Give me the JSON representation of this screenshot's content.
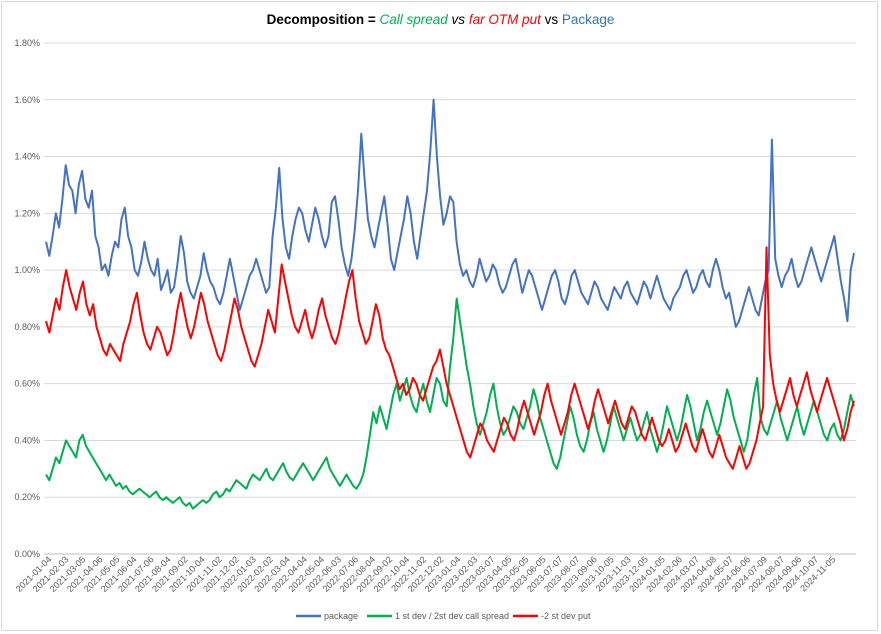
{
  "title": {
    "part1": "Decomposition = ",
    "part2": "Call spread",
    "part3": " vs ",
    "part4": "far OTM put",
    "part5": " vs ",
    "part6": "Package"
  },
  "chart_data": {
    "type": "line",
    "title": "Decomposition = Call spread vs far OTM put vs Package",
    "ylim": [
      0,
      0.018
    ],
    "y_ticks": [
      "0.00%",
      "0.20%",
      "0.40%",
      "0.60%",
      "0.80%",
      "1.00%",
      "1.20%",
      "1.40%",
      "1.60%",
      "1.80%"
    ],
    "y_tick_values": [
      0,
      0.002,
      0.004,
      0.006,
      0.008,
      0.01,
      0.012,
      0.014,
      0.016,
      0.018
    ],
    "grid": "horizontal",
    "legend_position": "bottom",
    "x_tick_labels": [
      "2021-01-04",
      "2021-02-03",
      "2021-03-05",
      "2021-04-06",
      "2021-05-05",
      "2021-06-04",
      "2021-07-06",
      "2021-08-04",
      "2021-09-02",
      "2021-10-04",
      "2021-11-02",
      "2021-12-02",
      "2022-01-03",
      "2022-02-02",
      "2022-03-04",
      "2022-04-04",
      "2022-05-04",
      "2022-06-03",
      "2022-07-06",
      "2022-08-04",
      "2022-09-02",
      "2022-10-04",
      "2022-11-02",
      "2022-12-02",
      "2023-01-04",
      "2023-02-03",
      "2023-03-07",
      "2023-04-05",
      "2023-05-05",
      "2023-06-05",
      "2023-07-07",
      "2023-08-07",
      "2023-09-06",
      "2023-10-05",
      "2023-11-03",
      "2023-12-05",
      "2024-01-05",
      "2024-02-06",
      "2024-03-07",
      "2024-04-08",
      "2024-05-07",
      "2024-06-06",
      "2024-07-09",
      "2024-08-07",
      "2024-09-06",
      "2024-10-07",
      "2024-11-05"
    ],
    "series": [
      {
        "name": "package",
        "color": "#4472c4",
        "values": [
          0.011,
          0.0105,
          0.0112,
          0.012,
          0.0115,
          0.0125,
          0.0137,
          0.013,
          0.0128,
          0.012,
          0.013,
          0.0135,
          0.0125,
          0.0122,
          0.0128,
          0.0112,
          0.0108,
          0.01,
          0.0102,
          0.0098,
          0.0105,
          0.011,
          0.0108,
          0.0118,
          0.0122,
          0.0112,
          0.0108,
          0.01,
          0.0098,
          0.0103,
          0.011,
          0.0104,
          0.01,
          0.0098,
          0.0104,
          0.0093,
          0.0096,
          0.01,
          0.0092,
          0.0094,
          0.0102,
          0.0112,
          0.0106,
          0.0096,
          0.0092,
          0.009,
          0.0094,
          0.0098,
          0.0106,
          0.01,
          0.0096,
          0.0094,
          0.009,
          0.0088,
          0.0092,
          0.0098,
          0.0104,
          0.0098,
          0.0092,
          0.0086,
          0.009,
          0.0094,
          0.0098,
          0.01,
          0.0104,
          0.01,
          0.0096,
          0.0092,
          0.0094,
          0.0112,
          0.0122,
          0.0136,
          0.0118,
          0.0108,
          0.0104,
          0.0112,
          0.0118,
          0.0122,
          0.012,
          0.0114,
          0.011,
          0.0116,
          0.0122,
          0.0118,
          0.0112,
          0.0108,
          0.0112,
          0.0124,
          0.0126,
          0.0118,
          0.0108,
          0.0102,
          0.0098,
          0.0104,
          0.0114,
          0.0128,
          0.0148,
          0.0132,
          0.0118,
          0.0112,
          0.0108,
          0.0114,
          0.012,
          0.0126,
          0.0116,
          0.0104,
          0.01,
          0.0106,
          0.0112,
          0.0118,
          0.0126,
          0.012,
          0.011,
          0.0104,
          0.0112,
          0.012,
          0.0128,
          0.0142,
          0.016,
          0.014,
          0.0126,
          0.0116,
          0.012,
          0.0126,
          0.0124,
          0.011,
          0.0102,
          0.0098,
          0.01,
          0.0096,
          0.0094,
          0.0098,
          0.0104,
          0.01,
          0.0096,
          0.0098,
          0.0102,
          0.01,
          0.0095,
          0.0092,
          0.0094,
          0.0098,
          0.0102,
          0.0104,
          0.0098,
          0.0092,
          0.0096,
          0.01,
          0.0098,
          0.0094,
          0.009,
          0.0086,
          0.009,
          0.0094,
          0.0098,
          0.01,
          0.0096,
          0.009,
          0.0088,
          0.0092,
          0.0098,
          0.01,
          0.0096,
          0.0092,
          0.009,
          0.0088,
          0.0092,
          0.0096,
          0.0094,
          0.009,
          0.0088,
          0.0086,
          0.009,
          0.0094,
          0.0092,
          0.009,
          0.0094,
          0.0096,
          0.0092,
          0.009,
          0.0088,
          0.0092,
          0.0096,
          0.0094,
          0.009,
          0.0094,
          0.0098,
          0.0094,
          0.009,
          0.0088,
          0.0086,
          0.009,
          0.0092,
          0.0094,
          0.0098,
          0.01,
          0.0096,
          0.0092,
          0.0094,
          0.0098,
          0.01,
          0.0096,
          0.0094,
          0.01,
          0.0104,
          0.01,
          0.0094,
          0.009,
          0.0092,
          0.0086,
          0.008,
          0.0082,
          0.0086,
          0.009,
          0.0094,
          0.009,
          0.0086,
          0.0084,
          0.009,
          0.0096,
          0.01,
          0.0146,
          0.0104,
          0.0098,
          0.0094,
          0.0098,
          0.01,
          0.0104,
          0.0098,
          0.0094,
          0.0096,
          0.01,
          0.0104,
          0.0108,
          0.0104,
          0.01,
          0.0096,
          0.01,
          0.0104,
          0.0108,
          0.0112,
          0.0104,
          0.0096,
          0.009,
          0.0082,
          0.01,
          0.0106
        ]
      },
      {
        "name": "1 st dev / 2st dev call spread",
        "color": "#00b050",
        "values": [
          0.0028,
          0.0026,
          0.003,
          0.0034,
          0.0032,
          0.0036,
          0.004,
          0.0038,
          0.0036,
          0.0034,
          0.004,
          0.0042,
          0.0038,
          0.0036,
          0.0034,
          0.0032,
          0.003,
          0.0028,
          0.0026,
          0.0028,
          0.0026,
          0.0024,
          0.0025,
          0.0023,
          0.0024,
          0.0022,
          0.0021,
          0.0022,
          0.0023,
          0.0022,
          0.0021,
          0.002,
          0.0021,
          0.0022,
          0.002,
          0.0019,
          0.002,
          0.0019,
          0.0018,
          0.0019,
          0.002,
          0.0018,
          0.0017,
          0.0018,
          0.0016,
          0.0017,
          0.0018,
          0.0019,
          0.0018,
          0.0019,
          0.0021,
          0.0022,
          0.002,
          0.0021,
          0.0023,
          0.0022,
          0.0024,
          0.0026,
          0.0025,
          0.0024,
          0.0023,
          0.0026,
          0.0028,
          0.0027,
          0.0026,
          0.0028,
          0.003,
          0.0027,
          0.0026,
          0.0028,
          0.003,
          0.0032,
          0.0029,
          0.0027,
          0.0026,
          0.0028,
          0.003,
          0.0032,
          0.003,
          0.0028,
          0.0026,
          0.0028,
          0.003,
          0.0032,
          0.0034,
          0.003,
          0.0028,
          0.0026,
          0.0024,
          0.0026,
          0.0028,
          0.0026,
          0.0024,
          0.0023,
          0.0025,
          0.0028,
          0.0034,
          0.0042,
          0.005,
          0.0046,
          0.0052,
          0.0048,
          0.0044,
          0.005,
          0.0056,
          0.006,
          0.0054,
          0.0058,
          0.0062,
          0.0056,
          0.0052,
          0.005,
          0.0056,
          0.006,
          0.0054,
          0.005,
          0.0056,
          0.0062,
          0.006,
          0.0054,
          0.0052,
          0.0066,
          0.0076,
          0.009,
          0.0082,
          0.0074,
          0.0066,
          0.006,
          0.0052,
          0.0046,
          0.0042,
          0.0046,
          0.005,
          0.0056,
          0.006,
          0.0052,
          0.0046,
          0.0042,
          0.0044,
          0.0048,
          0.0052,
          0.005,
          0.0046,
          0.0044,
          0.0048,
          0.0052,
          0.0058,
          0.0054,
          0.0048,
          0.0044,
          0.004,
          0.0036,
          0.0032,
          0.003,
          0.0034,
          0.004,
          0.0046,
          0.0052,
          0.0048,
          0.0042,
          0.0038,
          0.0036,
          0.004,
          0.0046,
          0.005,
          0.0044,
          0.004,
          0.0036,
          0.004,
          0.0046,
          0.0052,
          0.0048,
          0.0044,
          0.004,
          0.0044,
          0.0048,
          0.0044,
          0.004,
          0.0042,
          0.0046,
          0.005,
          0.0044,
          0.004,
          0.0036,
          0.004,
          0.0046,
          0.0052,
          0.0048,
          0.0044,
          0.004,
          0.0044,
          0.005,
          0.0056,
          0.0052,
          0.0046,
          0.004,
          0.0044,
          0.005,
          0.0054,
          0.005,
          0.0046,
          0.0042,
          0.0046,
          0.0052,
          0.0058,
          0.0054,
          0.0048,
          0.0044,
          0.004,
          0.0036,
          0.004,
          0.0048,
          0.0056,
          0.0062,
          0.0048,
          0.0044,
          0.0042,
          0.0046,
          0.005,
          0.0054,
          0.0048,
          0.0044,
          0.004,
          0.0044,
          0.0048,
          0.0052,
          0.0046,
          0.0042,
          0.0046,
          0.005,
          0.0054,
          0.005,
          0.0046,
          0.0042,
          0.004,
          0.0044,
          0.0046,
          0.0042,
          0.004,
          0.0044,
          0.005,
          0.0056,
          0.0052
        ]
      },
      {
        "name": "-2 st dev put",
        "color": "#ff0000",
        "values": [
          0.0082,
          0.0078,
          0.0084,
          0.009,
          0.0086,
          0.0094,
          0.01,
          0.0094,
          0.009,
          0.0086,
          0.0092,
          0.0096,
          0.0088,
          0.0084,
          0.0088,
          0.008,
          0.0076,
          0.0072,
          0.007,
          0.0074,
          0.0072,
          0.007,
          0.0068,
          0.0074,
          0.0078,
          0.0082,
          0.0088,
          0.0092,
          0.0084,
          0.0078,
          0.0074,
          0.0072,
          0.0076,
          0.008,
          0.0078,
          0.0074,
          0.007,
          0.0072,
          0.0078,
          0.0086,
          0.0092,
          0.0086,
          0.008,
          0.0076,
          0.008,
          0.0086,
          0.0092,
          0.0088,
          0.0082,
          0.0078,
          0.0074,
          0.007,
          0.0068,
          0.0072,
          0.0078,
          0.0084,
          0.009,
          0.0086,
          0.008,
          0.0076,
          0.0072,
          0.0068,
          0.0066,
          0.007,
          0.0074,
          0.008,
          0.0086,
          0.0082,
          0.0078,
          0.009,
          0.0102,
          0.0096,
          0.009,
          0.0084,
          0.008,
          0.0078,
          0.0082,
          0.0086,
          0.008,
          0.0076,
          0.008,
          0.0086,
          0.009,
          0.0084,
          0.008,
          0.0076,
          0.0074,
          0.0078,
          0.0084,
          0.009,
          0.0096,
          0.01,
          0.009,
          0.0082,
          0.0078,
          0.0074,
          0.0076,
          0.0082,
          0.0088,
          0.0084,
          0.0076,
          0.0072,
          0.007,
          0.0066,
          0.0062,
          0.0058,
          0.006,
          0.0056,
          0.0058,
          0.0062,
          0.006,
          0.0056,
          0.0054,
          0.0058,
          0.0062,
          0.0066,
          0.0068,
          0.0072,
          0.0066,
          0.006,
          0.0056,
          0.0052,
          0.0048,
          0.0044,
          0.004,
          0.0036,
          0.0034,
          0.0038,
          0.0042,
          0.0046,
          0.0044,
          0.004,
          0.0038,
          0.0036,
          0.004,
          0.0044,
          0.0048,
          0.0046,
          0.0042,
          0.004,
          0.0044,
          0.005,
          0.0054,
          0.005,
          0.0046,
          0.0042,
          0.0046,
          0.005,
          0.0056,
          0.006,
          0.0054,
          0.005,
          0.0046,
          0.0042,
          0.0046,
          0.005,
          0.0056,
          0.006,
          0.0056,
          0.0052,
          0.0048,
          0.0044,
          0.0048,
          0.0054,
          0.0058,
          0.0054,
          0.005,
          0.0046,
          0.005,
          0.0054,
          0.005,
          0.0046,
          0.0044,
          0.0048,
          0.0052,
          0.005,
          0.0046,
          0.0042,
          0.004,
          0.0044,
          0.0048,
          0.0044,
          0.004,
          0.0038,
          0.004,
          0.0044,
          0.004,
          0.0036,
          0.0038,
          0.0042,
          0.0046,
          0.0042,
          0.0038,
          0.0036,
          0.004,
          0.0044,
          0.004,
          0.0036,
          0.0034,
          0.0038,
          0.0042,
          0.0038,
          0.0034,
          0.0032,
          0.003,
          0.0034,
          0.0038,
          0.0034,
          0.003,
          0.0032,
          0.0036,
          0.004,
          0.0046,
          0.0052,
          0.0108,
          0.007,
          0.006,
          0.0054,
          0.005,
          0.0054,
          0.0058,
          0.0062,
          0.0056,
          0.0052,
          0.0056,
          0.006,
          0.0064,
          0.0058,
          0.0054,
          0.005,
          0.0054,
          0.0058,
          0.0062,
          0.0058,
          0.0054,
          0.005,
          0.0046,
          0.004,
          0.0044,
          0.005,
          0.0054
        ]
      }
    ]
  }
}
